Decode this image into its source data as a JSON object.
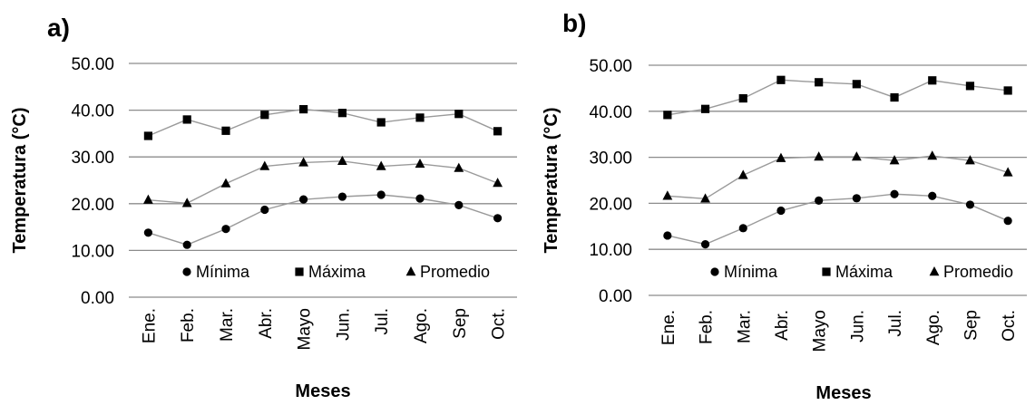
{
  "colors": {
    "grid": "#8c8c8c",
    "line": "#9a9a9a",
    "marker": "#000000"
  },
  "chart_data": [
    {
      "panel": "a)",
      "type": "line",
      "categories": [
        "Ene.",
        "Feb.",
        "Mar.",
        "Abr.",
        "Mayo",
        "Jun.",
        "Jul.",
        "Ago.",
        "Sep",
        "Oct."
      ],
      "xlabel": "Meses",
      "ylabel": "Temperatura (°C)",
      "ylim": [
        0,
        50
      ],
      "yticks": [
        "0.00",
        "10.00",
        "20.00",
        "30.00",
        "40.00",
        "50.00"
      ],
      "grid": true,
      "legend_position": "bottom-right",
      "series": [
        {
          "name": "Mínima",
          "marker": "circle",
          "values": [
            13.8,
            11.2,
            14.6,
            18.7,
            20.9,
            21.5,
            21.9,
            21.1,
            19.7,
            16.9
          ]
        },
        {
          "name": "Máxima",
          "marker": "square",
          "values": [
            34.5,
            38.0,
            35.6,
            39.0,
            40.2,
            39.4,
            37.4,
            38.4,
            39.2,
            35.5
          ]
        },
        {
          "name": "Promedio",
          "marker": "triangle",
          "values": [
            20.8,
            20.1,
            24.3,
            28.0,
            28.8,
            29.1,
            28.0,
            28.5,
            27.6,
            24.4
          ]
        }
      ]
    },
    {
      "panel": "b)",
      "type": "line",
      "categories": [
        "Ene.",
        "Feb.",
        "Mar.",
        "Abr.",
        "Mayo",
        "Jun.",
        "Jul.",
        "Ago.",
        "Sep",
        "Oct."
      ],
      "xlabel": "Meses",
      "ylabel": "Temperatura (°C)",
      "ylim": [
        0,
        50
      ],
      "yticks": [
        "0.00",
        "10.00",
        "20.00",
        "30.00",
        "40.00",
        "50.00"
      ],
      "grid": true,
      "legend_position": "bottom-right",
      "series": [
        {
          "name": "Mínima",
          "marker": "circle",
          "values": [
            13.0,
            11.1,
            14.6,
            18.4,
            20.6,
            21.1,
            22.0,
            21.6,
            19.7,
            16.2
          ]
        },
        {
          "name": "Máxima",
          "marker": "square",
          "values": [
            39.2,
            40.5,
            42.8,
            46.8,
            46.3,
            45.9,
            43.0,
            46.7,
            45.5,
            44.5
          ]
        },
        {
          "name": "Promedio",
          "marker": "triangle",
          "values": [
            21.6,
            21.0,
            26.1,
            29.8,
            30.1,
            30.1,
            29.3,
            30.3,
            29.3,
            26.7
          ]
        }
      ]
    }
  ]
}
